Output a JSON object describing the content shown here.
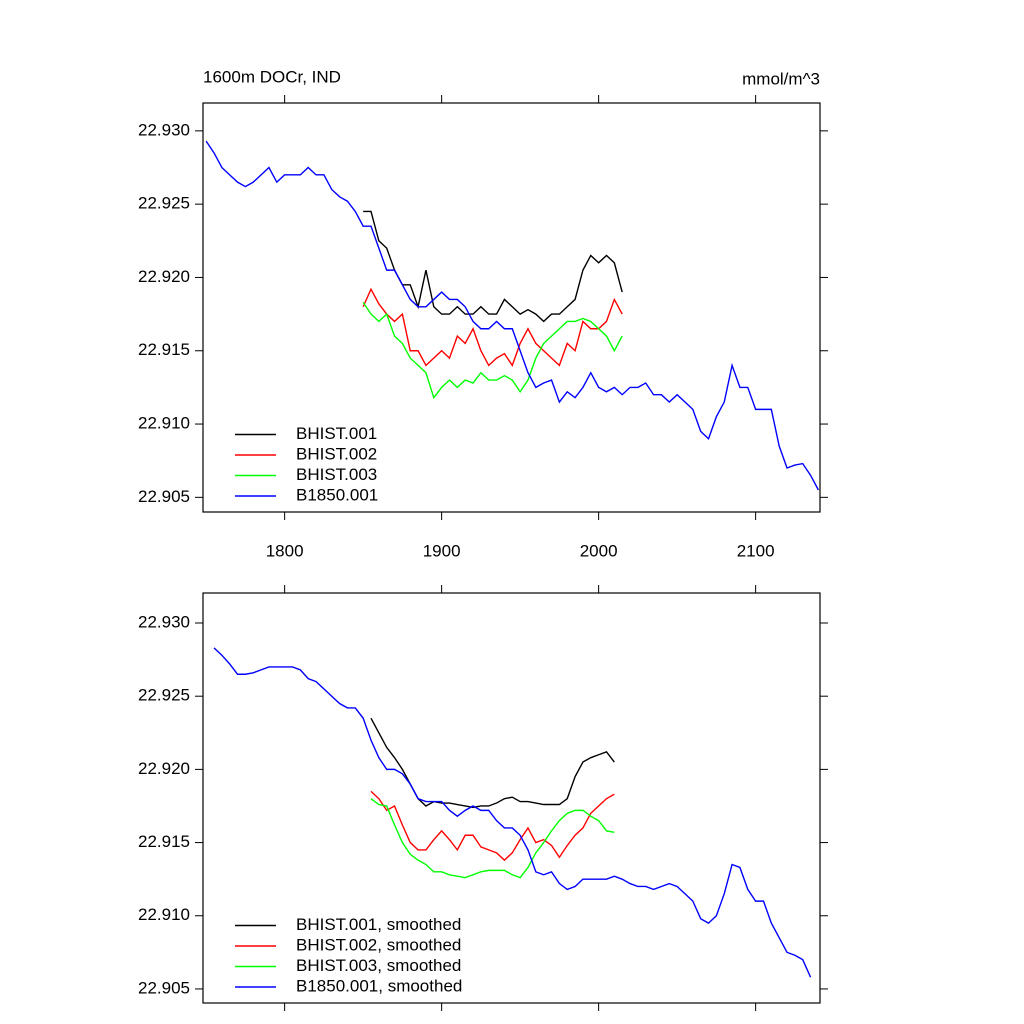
{
  "chart_data": [
    {
      "type": "line",
      "title": "1600m DOCr, IND",
      "units_label": "mmol/m^3",
      "xlim": [
        1748,
        2141
      ],
      "xticks": [
        1800,
        1900,
        2000,
        2100
      ],
      "show_xtick_labels": true,
      "ylim": [
        22.904,
        22.9319
      ],
      "yticks": [
        {
          "value": 22.905,
          "label": "22.905"
        },
        {
          "value": 22.91,
          "label": "22.910"
        },
        {
          "value": 22.915,
          "label": "22.915"
        },
        {
          "value": 22.92,
          "label": "22.920"
        },
        {
          "value": 22.925,
          "label": "22.925"
        },
        {
          "value": 22.93,
          "label": "22.930"
        }
      ],
      "legend": "lower left",
      "series": [
        {
          "name": "BHIST.001",
          "color": "#000000",
          "x": [
            1850,
            1855,
            1860,
            1865,
            1870,
            1875,
            1880,
            1885,
            1890,
            1895,
            1900,
            1905,
            1910,
            1915,
            1920,
            1925,
            1930,
            1935,
            1940,
            1945,
            1950,
            1955,
            1960,
            1965,
            1970,
            1975,
            1980,
            1985,
            1990,
            1995,
            2000,
            2005,
            2010,
            2015
          ],
          "values": [
            22.9245,
            22.9245,
            22.9225,
            22.922,
            22.9205,
            22.9195,
            22.9195,
            22.918,
            22.9205,
            22.918,
            22.9175,
            22.9175,
            22.918,
            22.9175,
            22.9175,
            22.918,
            22.9175,
            22.9175,
            22.9185,
            22.918,
            22.9175,
            22.9178,
            22.9175,
            22.917,
            22.9175,
            22.9175,
            22.918,
            22.9185,
            22.9205,
            22.9215,
            22.921,
            22.9215,
            22.921,
            22.919
          ]
        },
        {
          "name": "BHIST.002",
          "color": "#ff0000",
          "x": [
            1850,
            1855,
            1860,
            1865,
            1870,
            1875,
            1880,
            1885,
            1890,
            1895,
            1900,
            1905,
            1910,
            1915,
            1920,
            1925,
            1930,
            1935,
            1940,
            1945,
            1950,
            1955,
            1960,
            1965,
            1970,
            1975,
            1980,
            1985,
            1990,
            1995,
            2000,
            2005,
            2010,
            2015
          ],
          "values": [
            22.918,
            22.9192,
            22.9182,
            22.9175,
            22.917,
            22.9175,
            22.915,
            22.915,
            22.914,
            22.9145,
            22.915,
            22.9145,
            22.916,
            22.9155,
            22.9165,
            22.915,
            22.914,
            22.9145,
            22.9148,
            22.914,
            22.9155,
            22.9165,
            22.9155,
            22.915,
            22.9145,
            22.914,
            22.9155,
            22.915,
            22.917,
            22.9165,
            22.9165,
            22.917,
            22.9185,
            22.9175
          ]
        },
        {
          "name": "BHIST.003",
          "color": "#00ff00",
          "x": [
            1850,
            1855,
            1860,
            1865,
            1870,
            1875,
            1880,
            1885,
            1890,
            1895,
            1900,
            1905,
            1910,
            1915,
            1920,
            1925,
            1930,
            1935,
            1940,
            1945,
            1950,
            1955,
            1960,
            1965,
            1970,
            1975,
            1980,
            1985,
            1990,
            1995,
            2000,
            2005,
            2010,
            2015
          ],
          "values": [
            22.9183,
            22.9175,
            22.917,
            22.9175,
            22.916,
            22.9155,
            22.9145,
            22.914,
            22.9135,
            22.9118,
            22.9125,
            22.913,
            22.9125,
            22.913,
            22.9128,
            22.9135,
            22.913,
            22.913,
            22.9133,
            22.913,
            22.9122,
            22.913,
            22.9145,
            22.9155,
            22.916,
            22.9165,
            22.917,
            22.917,
            22.9172,
            22.917,
            22.9165,
            22.916,
            22.915,
            22.916
          ]
        },
        {
          "name": "B1850.001",
          "color": "#0000ff",
          "x": [
            1750,
            1755,
            1760,
            1765,
            1770,
            1775,
            1780,
            1785,
            1790,
            1795,
            1800,
            1805,
            1810,
            1815,
            1820,
            1825,
            1830,
            1835,
            1840,
            1845,
            1850,
            1855,
            1860,
            1865,
            1870,
            1875,
            1880,
            1885,
            1890,
            1895,
            1900,
            1905,
            1910,
            1915,
            1920,
            1925,
            1930,
            1935,
            1940,
            1945,
            1950,
            1955,
            1960,
            1965,
            1970,
            1975,
            1980,
            1985,
            1990,
            1995,
            2000,
            2005,
            2010,
            2015,
            2020,
            2025,
            2030,
            2035,
            2040,
            2045,
            2050,
            2055,
            2060,
            2065,
            2070,
            2075,
            2080,
            2085,
            2090,
            2095,
            2100,
            2105,
            2110,
            2115,
            2120,
            2125,
            2130,
            2135,
            2140
          ],
          "values": [
            22.9293,
            22.9285,
            22.9275,
            22.927,
            22.9265,
            22.9262,
            22.9265,
            22.927,
            22.9275,
            22.9265,
            22.927,
            22.927,
            22.927,
            22.9275,
            22.927,
            22.927,
            22.926,
            22.9255,
            22.9252,
            22.9245,
            22.9235,
            22.9235,
            22.922,
            22.9205,
            22.9205,
            22.9195,
            22.9185,
            22.918,
            22.918,
            22.9185,
            22.919,
            22.9185,
            22.9185,
            22.918,
            22.917,
            22.9165,
            22.9165,
            22.917,
            22.9165,
            22.9165,
            22.915,
            22.9135,
            22.9125,
            22.9128,
            22.913,
            22.9115,
            22.9122,
            22.9118,
            22.9125,
            22.9135,
            22.9125,
            22.9122,
            22.9125,
            22.912,
            22.9125,
            22.9125,
            22.9128,
            22.912,
            22.912,
            22.9115,
            22.912,
            22.9115,
            22.911,
            22.9095,
            22.909,
            22.9105,
            22.9115,
            22.914,
            22.9125,
            22.9125,
            22.911,
            22.911,
            22.911,
            22.9085,
            22.907,
            22.9072,
            22.9073,
            22.9065,
            22.9055
          ]
        }
      ]
    },
    {
      "type": "line",
      "xlim": [
        1748,
        2141
      ],
      "xticks": [
        1800,
        1900,
        2000,
        2100
      ],
      "show_xtick_labels": false,
      "ylim": [
        22.90404,
        22.93205
      ],
      "yticks": [
        {
          "value": 22.905,
          "label": "22.905"
        },
        {
          "value": 22.91,
          "label": "22.910"
        },
        {
          "value": 22.915,
          "label": "22.915"
        },
        {
          "value": 22.92,
          "label": "22.920"
        },
        {
          "value": 22.925,
          "label": "22.925"
        },
        {
          "value": 22.93,
          "label": "22.930"
        }
      ],
      "legend": "lower left",
      "series": [
        {
          "name": "BHIST.001, smoothed",
          "color": "#000000",
          "x": [
            1855,
            1860,
            1865,
            1870,
            1875,
            1880,
            1885,
            1890,
            1895,
            1900,
            1905,
            1910,
            1915,
            1920,
            1925,
            1930,
            1935,
            1940,
            1945,
            1950,
            1955,
            1960,
            1965,
            1970,
            1975,
            1980,
            1985,
            1990,
            1995,
            2000,
            2005,
            2010
          ],
          "values": [
            22.9235,
            22.9225,
            22.9215,
            22.9208,
            22.92,
            22.919,
            22.918,
            22.9175,
            22.9178,
            22.9177,
            22.9177,
            22.9176,
            22.9175,
            22.9174,
            22.9175,
            22.9175,
            22.9177,
            22.918,
            22.9181,
            22.9178,
            22.9178,
            22.9177,
            22.9176,
            22.9176,
            22.9176,
            22.918,
            22.9195,
            22.9205,
            22.9208,
            22.921,
            22.9212,
            22.9205
          ]
        },
        {
          "name": "BHIST.002, smoothed",
          "color": "#ff0000",
          "x": [
            1855,
            1860,
            1865,
            1870,
            1875,
            1880,
            1885,
            1890,
            1895,
            1900,
            1905,
            1910,
            1915,
            1920,
            1925,
            1930,
            1935,
            1940,
            1945,
            1950,
            1955,
            1960,
            1965,
            1970,
            1975,
            1980,
            1985,
            1990,
            1995,
            2000,
            2005,
            2010
          ],
          "values": [
            22.9185,
            22.918,
            22.9172,
            22.9175,
            22.9162,
            22.915,
            22.9145,
            22.9145,
            22.9152,
            22.9158,
            22.9152,
            22.9145,
            22.9155,
            22.9155,
            22.9147,
            22.9145,
            22.9143,
            22.9138,
            22.9143,
            22.9152,
            22.916,
            22.915,
            22.9152,
            22.9148,
            22.914,
            22.9148,
            22.9155,
            22.916,
            22.917,
            22.9175,
            22.918,
            22.9183
          ]
        },
        {
          "name": "BHIST.003, smoothed",
          "color": "#00ff00",
          "x": [
            1855,
            1860,
            1865,
            1870,
            1875,
            1880,
            1885,
            1890,
            1895,
            1900,
            1905,
            1910,
            1915,
            1920,
            1925,
            1930,
            1935,
            1940,
            1945,
            1950,
            1955,
            1960,
            1965,
            1970,
            1975,
            1980,
            1985,
            1990,
            1995,
            2000,
            2005,
            2010
          ],
          "values": [
            22.918,
            22.9176,
            22.9175,
            22.9162,
            22.915,
            22.9142,
            22.9138,
            22.9135,
            22.913,
            22.913,
            22.9128,
            22.9127,
            22.9126,
            22.9128,
            22.913,
            22.9131,
            22.9131,
            22.9131,
            22.9128,
            22.9126,
            22.9133,
            22.9143,
            22.915,
            22.9158,
            22.9165,
            22.917,
            22.9172,
            22.9172,
            22.9168,
            22.9165,
            22.9158,
            22.9157
          ]
        },
        {
          "name": "B1850.001, smoothed",
          "color": "#0000ff",
          "x": [
            1755,
            1760,
            1765,
            1770,
            1775,
            1780,
            1785,
            1790,
            1795,
            1800,
            1805,
            1810,
            1815,
            1820,
            1825,
            1830,
            1835,
            1840,
            1845,
            1850,
            1855,
            1860,
            1865,
            1870,
            1875,
            1880,
            1885,
            1890,
            1895,
            1900,
            1905,
            1910,
            1915,
            1920,
            1925,
            1930,
            1935,
            1940,
            1945,
            1950,
            1955,
            1960,
            1965,
            1970,
            1975,
            1980,
            1985,
            1990,
            1995,
            2000,
            2005,
            2010,
            2015,
            2020,
            2025,
            2030,
            2035,
            2040,
            2045,
            2050,
            2055,
            2060,
            2065,
            2070,
            2075,
            2080,
            2085,
            2090,
            2095,
            2100,
            2105,
            2110,
            2115,
            2120,
            2125,
            2130,
            2135
          ],
          "values": [
            22.9283,
            22.9278,
            22.9272,
            22.9265,
            22.9265,
            22.9266,
            22.9268,
            22.927,
            22.927,
            22.927,
            22.927,
            22.9268,
            22.9262,
            22.926,
            22.9255,
            22.925,
            22.9245,
            22.9242,
            22.9242,
            22.9235,
            22.922,
            22.9208,
            22.92,
            22.92,
            22.9197,
            22.919,
            22.918,
            22.9178,
            22.9178,
            22.9178,
            22.9172,
            22.9168,
            22.9172,
            22.9175,
            22.9172,
            22.9172,
            22.9165,
            22.916,
            22.916,
            22.9155,
            22.9145,
            22.913,
            22.9128,
            22.913,
            22.9122,
            22.9118,
            22.912,
            22.9125,
            22.9125,
            22.9125,
            22.9125,
            22.9127,
            22.9125,
            22.9122,
            22.912,
            22.912,
            22.9118,
            22.912,
            22.9122,
            22.912,
            22.9115,
            22.911,
            22.9098,
            22.9095,
            22.91,
            22.9115,
            22.9135,
            22.9133,
            22.9118,
            22.911,
            22.911,
            22.9095,
            22.9085,
            22.9075,
            22.9073,
            22.907,
            22.9058
          ]
        }
      ]
    }
  ]
}
